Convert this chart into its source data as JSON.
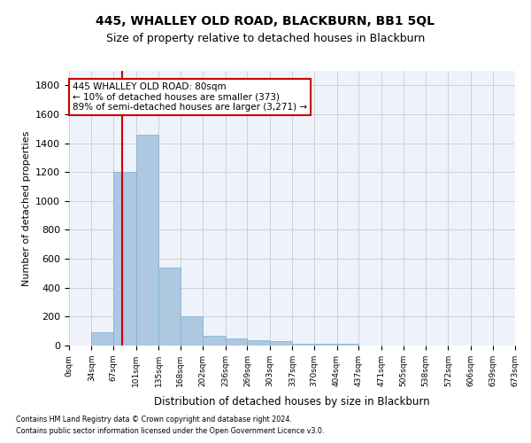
{
  "title": "445, WHALLEY OLD ROAD, BLACKBURN, BB1 5QL",
  "subtitle": "Size of property relative to detached houses in Blackburn",
  "xlabel": "Distribution of detached houses by size in Blackburn",
  "ylabel": "Number of detached properties",
  "bar_color": "#adc8e0",
  "bar_edge_color": "#7aafd4",
  "background_color": "#eef2fb",
  "grid_color": "#d0d0d0",
  "annotation_box_color": "#cc0000",
  "property_line_x": 80,
  "annotation_line1": "445 WHALLEY OLD ROAD: 80sqm",
  "annotation_line2": "← 10% of detached houses are smaller (373)",
  "annotation_line3": "89% of semi-detached houses are larger (3,271) →",
  "footer1": "Contains HM Land Registry data © Crown copyright and database right 2024.",
  "footer2": "Contains public sector information licensed under the Open Government Licence v3.0.",
  "bin_edges": [
    0,
    34,
    67,
    101,
    135,
    168,
    202,
    236,
    269,
    303,
    337,
    370,
    404,
    437,
    471,
    505,
    538,
    572,
    606,
    639,
    673
  ],
  "bar_heights": [
    0,
    90,
    1200,
    1460,
    540,
    205,
    65,
    47,
    38,
    30,
    10,
    10,
    10,
    0,
    0,
    0,
    0,
    0,
    0,
    0
  ],
  "ylim": [
    0,
    1900
  ],
  "yticks": [
    0,
    200,
    400,
    600,
    800,
    1000,
    1200,
    1400,
    1600,
    1800
  ],
  "title_fontsize": 10,
  "subtitle_fontsize": 9
}
